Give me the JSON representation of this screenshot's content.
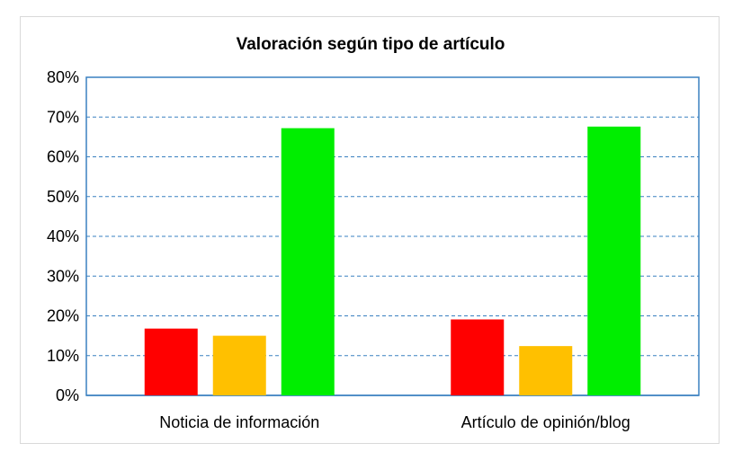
{
  "chart_data": {
    "type": "bar",
    "title": "Valoración según tipo de artículo",
    "xlabel": "",
    "ylabel": "",
    "categories": [
      "Noticia de información",
      "Artículo de opinión/blog"
    ],
    "series": [
      {
        "color": "#ff0000",
        "values": [
          16.8,
          19.1
        ]
      },
      {
        "color": "#ffc000",
        "values": [
          15.0,
          12.4
        ]
      },
      {
        "color": "#00ee00",
        "values": [
          67.2,
          67.6
        ]
      }
    ],
    "ylim": [
      0,
      80
    ],
    "yticks": [
      "0%",
      "10%",
      "20%",
      "30%",
      "40%",
      "50%",
      "60%",
      "70%",
      "80%"
    ],
    "grid": true,
    "legend": "none"
  }
}
